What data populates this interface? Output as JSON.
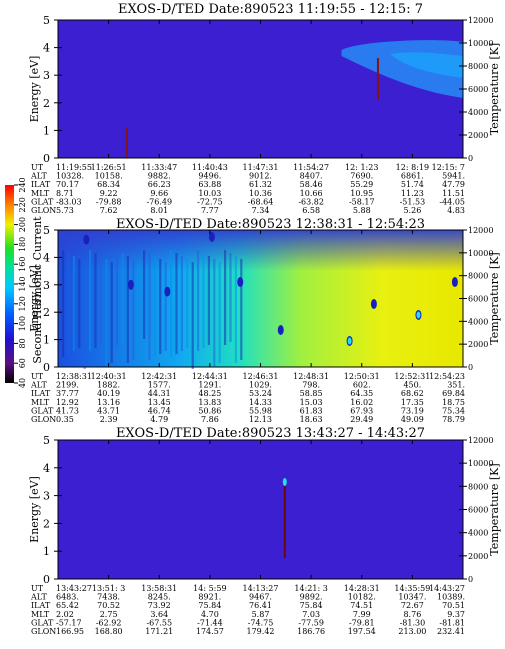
{
  "chart_data": [
    {
      "type": "heatmap",
      "title": "EXOS-D/TED  Date:890523  11:19:55 - 12:15: 7",
      "ylabel": "Energy [eV]",
      "y2label": "Temperature [K]",
      "ylim": [
        0,
        5
      ],
      "y2lim": [
        0,
        12000
      ],
      "yticks": [
        "0",
        "1",
        "2",
        "3",
        "4",
        "5"
      ],
      "y2ticks": [
        "0",
        "2000",
        "4000",
        "6000",
        "8000",
        "10000",
        "12000"
      ],
      "row_labels": [
        "UT",
        "ALT",
        "ILAT",
        "MLT",
        "GLAT",
        "GLON"
      ],
      "columns": [
        [
          "11:19:55",
          "10328.",
          "70.17",
          "8.71",
          "-83.03",
          "5.73"
        ],
        [
          "11:26:51",
          "10158.",
          "68.34",
          "9.22",
          "-79.88",
          "7.62"
        ],
        [
          "11:33:47",
          "9882.",
          "66.23",
          "9.66",
          "-76.49",
          "8.01"
        ],
        [
          "11:40:43",
          "9496.",
          "63.88",
          "10.03",
          "-72.75",
          "7.77"
        ],
        [
          "11:47:31",
          "9012.",
          "61.32",
          "10.36",
          "-68.64",
          "7.34"
        ],
        [
          "11:54:27",
          "8407.",
          "58.46",
          "10.66",
          "-63.82",
          "6.58"
        ],
        [
          "12: 1:23",
          "7690.",
          "55.29",
          "10.95",
          "-58.17",
          "5.88"
        ],
        [
          "12: 8:19",
          "6861.",
          "51.74",
          "11.23",
          "-51.53",
          "5.26"
        ],
        [
          "12:15: 7",
          "5941.",
          "47.79",
          "11.51",
          "-44.05",
          "4.83"
        ]
      ]
    },
    {
      "type": "heatmap",
      "title": "EXOS-D/TED  Date:890523  12:38:31 - 12:54:23",
      "ylabel": "Energy [eV]",
      "y2label": "Temperature [K]",
      "ylim": [
        0,
        5
      ],
      "y2lim": [
        0,
        12000
      ],
      "yticks": [
        "0",
        "1",
        "2",
        "3",
        "4",
        "5"
      ],
      "y2ticks": [
        "0",
        "2000",
        "4000",
        "6000",
        "8000",
        "10000",
        "12000"
      ],
      "colorbar": {
        "label": "Second Harmonic Current",
        "ticks": [
          "40",
          "60",
          "80",
          "100",
          "120",
          "140",
          "160",
          "180",
          "200",
          "220",
          "240"
        ]
      },
      "row_labels": [
        "UT",
        "ALT",
        "ILAT",
        "MLT",
        "GLAT",
        "GLON"
      ],
      "columns": [
        [
          "12:38:31",
          "2199.",
          "37.77",
          "12.92",
          "41.73",
          "0.35"
        ],
        [
          "12:40:31",
          "1882.",
          "40.19",
          "13.16",
          "43.71",
          "2.39"
        ],
        [
          "12:42:31",
          "1577.",
          "44.31",
          "13.45",
          "46.74",
          "4.79"
        ],
        [
          "12:44:31",
          "1291.",
          "48.25",
          "13.83",
          "50.86",
          "7.86"
        ],
        [
          "12:46:31",
          "1029.",
          "53.24",
          "14.33",
          "55.98",
          "12.13"
        ],
        [
          "12:48:31",
          "798.",
          "58.85",
          "15.03",
          "61.83",
          "18.63"
        ],
        [
          "12:50:31",
          "602.",
          "64.35",
          "16.02",
          "67.93",
          "29.49"
        ],
        [
          "12:52:31",
          "450.",
          "68.62",
          "17.35",
          "73.19",
          "49.09"
        ],
        [
          "12:54:23",
          "351.",
          "69.84",
          "18.75",
          "75.34",
          "78.79"
        ]
      ]
    },
    {
      "type": "heatmap",
      "title": "EXOS-D/TED  Date:890523  13:43:27 - 14:43:27",
      "ylabel": "Energy [eV]",
      "y2label": "Temperature [K]",
      "ylim": [
        0,
        5
      ],
      "y2lim": [
        0,
        12000
      ],
      "yticks": [
        "0",
        "1",
        "2",
        "3",
        "4",
        "5"
      ],
      "y2ticks": [
        "0",
        "2000",
        "4000",
        "6000",
        "8000",
        "10000",
        "12000"
      ],
      "row_labels": [
        "UT",
        "ALT",
        "ILAT",
        "MLT",
        "GLAT",
        "GLON"
      ],
      "columns": [
        [
          "13:43:27",
          "6483.",
          "65.42",
          "2.02",
          "-57.17",
          "166.95"
        ],
        [
          "13:51: 3",
          "7438.",
          "70.52",
          "2.75",
          "-62.92",
          "168.80"
        ],
        [
          "13:58:31",
          "8245.",
          "73.92",
          "3.64",
          "-67.55",
          "171.21"
        ],
        [
          "14: 5:59",
          "8921.",
          "75.84",
          "4.70",
          "-71.44",
          "174.57"
        ],
        [
          "14:13:27",
          "9467.",
          "76.41",
          "5.87",
          "-74.75",
          "179.42"
        ],
        [
          "14:21: 3",
          "9892.",
          "75.84",
          "7.03",
          "-77.59",
          "186.76"
        ],
        [
          "14:28:31",
          "10182.",
          "74.51",
          "7.99",
          "-79.81",
          "197.54"
        ],
        [
          "14:35:59",
          "10347.",
          "72.67",
          "8.76",
          "-81.30",
          "213.00"
        ],
        [
          "14:43:27",
          "10389.",
          "70.51",
          "9.37",
          "-81.81",
          "232.41"
        ]
      ]
    }
  ]
}
